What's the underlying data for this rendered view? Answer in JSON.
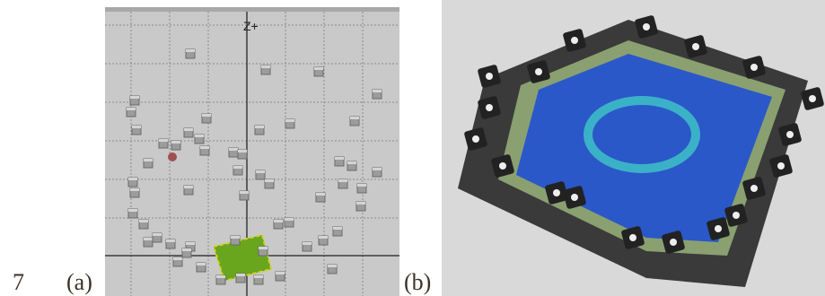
{
  "figure": {
    "number": "7",
    "panels": [
      {
        "label": "(a)",
        "axis_label": "Z+"
      },
      {
        "label": "(b)"
      }
    ]
  }
}
